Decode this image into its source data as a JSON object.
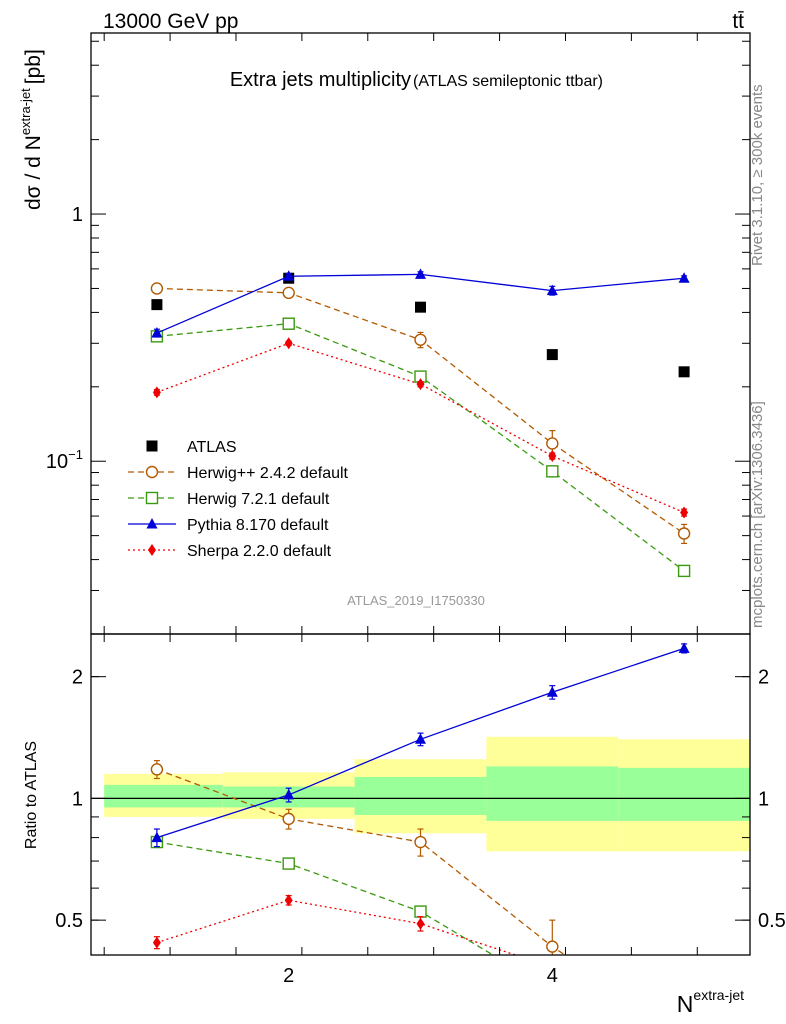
{
  "header": {
    "energy_label": "13000 GeV pp",
    "process_label": "tt̄"
  },
  "side_labels": {
    "rivet": "Rivet 3.1.10, ≥ 300k events",
    "mcplots": "mcplots.cern.ch [arXiv:1306.3436]"
  },
  "colors": {
    "atlas": "#000000",
    "herwigpp": "#b35900",
    "herwig7": "#3a9a10",
    "pythia": "#0000d8",
    "sherpa": "#ee0000",
    "band_outer": "#ffff99",
    "band_inner": "#99ff99"
  },
  "chart_data": [
    {
      "type": "line",
      "title": "Extra jets multiplicity",
      "subtitle": "(ATLAS semileptonic ttbar)",
      "watermark": "ATLAS_2019_I1750330",
      "ylabel": "dσ / d N",
      "ylabel_sup": "extra-jet",
      "ylabel_unit": "[pb]",
      "yscale": "log",
      "xlim": [
        0.5,
        5.5
      ],
      "ylim": [
        0.02,
        5.4
      ],
      "y_ticks": [
        {
          "value": 0.1,
          "base": "10",
          "exp": "−1"
        },
        {
          "value": 1,
          "label": "1"
        }
      ],
      "x": [
        1,
        2,
        3,
        4,
        5
      ],
      "series": [
        {
          "name": "ATLAS",
          "key": "atlas",
          "marker": "square-filled",
          "style": "none",
          "values": [
            0.43,
            0.55,
            0.42,
            0.27,
            0.23
          ]
        },
        {
          "name": "Herwig++ 2.4.2 default",
          "key": "herwigpp",
          "marker": "circle-open",
          "style": "dashed",
          "values": [
            0.5,
            0.48,
            0.31,
            0.118,
            0.051
          ],
          "errors": [
            0.02,
            0.02,
            0.022,
            0.015,
            0.0045
          ]
        },
        {
          "name": "Herwig 7.2.1 default",
          "key": "herwig7",
          "marker": "square-open",
          "style": "dashed",
          "values": [
            0.32,
            0.36,
            0.22,
            0.091,
            0.036
          ],
          "errors": [
            0.01,
            0.01,
            0.008,
            0.003,
            0.0015
          ]
        },
        {
          "name": "Pythia 8.170 default",
          "key": "pythia",
          "marker": "triangle-filled",
          "style": "solid",
          "values": [
            0.33,
            0.56,
            0.57,
            0.49,
            0.55
          ],
          "errors": [
            0.012,
            0.015,
            0.014,
            0.02,
            0.012
          ]
        },
        {
          "name": "Sherpa 2.2.0 default",
          "key": "sherpa",
          "marker": "diamond-filled",
          "style": "dotted",
          "values": [
            0.19,
            0.3,
            0.205,
            0.105,
            0.062
          ],
          "errors": [
            0.005,
            0.006,
            0.005,
            0.003,
            0.002
          ]
        }
      ],
      "legend_position": "center-left"
    },
    {
      "type": "line",
      "title": "",
      "ylabel": "Ratio to ATLAS",
      "xlabel": "N",
      "xlabel_sup": "extra-jet",
      "yscale": "log",
      "xlim": [
        0.5,
        5.5
      ],
      "ylim": [
        0.41,
        2.55
      ],
      "x_ticks": [
        2,
        4
      ],
      "y_ticks": [
        0.5,
        1,
        2
      ],
      "reference_line": 1,
      "bands": [
        {
          "x": [
            0.6,
            1.5
          ],
          "outer": [
            0.9,
            1.15
          ],
          "inner": [
            0.95,
            1.08
          ]
        },
        {
          "x": [
            1.5,
            2.5
          ],
          "outer": [
            0.89,
            1.16
          ],
          "inner": [
            0.95,
            1.07
          ]
        },
        {
          "x": [
            2.5,
            3.5
          ],
          "outer": [
            0.82,
            1.25
          ],
          "inner": [
            0.91,
            1.13
          ]
        },
        {
          "x": [
            3.5,
            4.5
          ],
          "outer": [
            0.74,
            1.42
          ],
          "inner": [
            0.88,
            1.2
          ]
        },
        {
          "x": [
            4.5,
            5.5
          ],
          "outer": [
            0.74,
            1.4
          ],
          "inner": [
            0.88,
            1.19
          ]
        }
      ],
      "series": [
        {
          "name": "Herwig++ 2.4.2 default",
          "key": "herwigpp",
          "marker": "circle-open",
          "style": "dashed",
          "x": [
            1,
            2,
            3,
            4,
            4.2
          ],
          "values": [
            1.18,
            0.89,
            0.78,
            0.43,
            0.39
          ],
          "markers": [
            true,
            true,
            true,
            true,
            false
          ],
          "errors": [
            0.06,
            0.05,
            0.06,
            0.07,
            0
          ]
        },
        {
          "name": "Herwig 7.2.1 default",
          "key": "herwig7",
          "marker": "square-open",
          "style": "dashed",
          "x": [
            1,
            2,
            3,
            3.55
          ],
          "values": [
            0.78,
            0.69,
            0.525,
            0.41
          ],
          "markers": [
            true,
            true,
            true,
            false
          ],
          "errors": [
            0,
            0,
            0,
            0
          ]
        },
        {
          "name": "Pythia 8.170 default",
          "key": "pythia",
          "marker": "triangle-filled",
          "style": "solid",
          "x": [
            1,
            2,
            3,
            4,
            5
          ],
          "values": [
            0.8,
            1.02,
            1.4,
            1.83,
            2.35
          ],
          "markers": [
            true,
            true,
            true,
            true,
            true
          ],
          "errors": [
            0.04,
            0.04,
            0.05,
            0.07,
            0.06
          ]
        },
        {
          "name": "Sherpa 2.2.0 default",
          "key": "sherpa",
          "marker": "diamond-filled",
          "style": "dotted",
          "x": [
            1,
            2,
            3,
            3.72
          ],
          "values": [
            0.44,
            0.56,
            0.49,
            0.41
          ],
          "markers": [
            true,
            true,
            true,
            false
          ],
          "errors": [
            0.015,
            0.015,
            0.02,
            0
          ]
        }
      ]
    }
  ]
}
